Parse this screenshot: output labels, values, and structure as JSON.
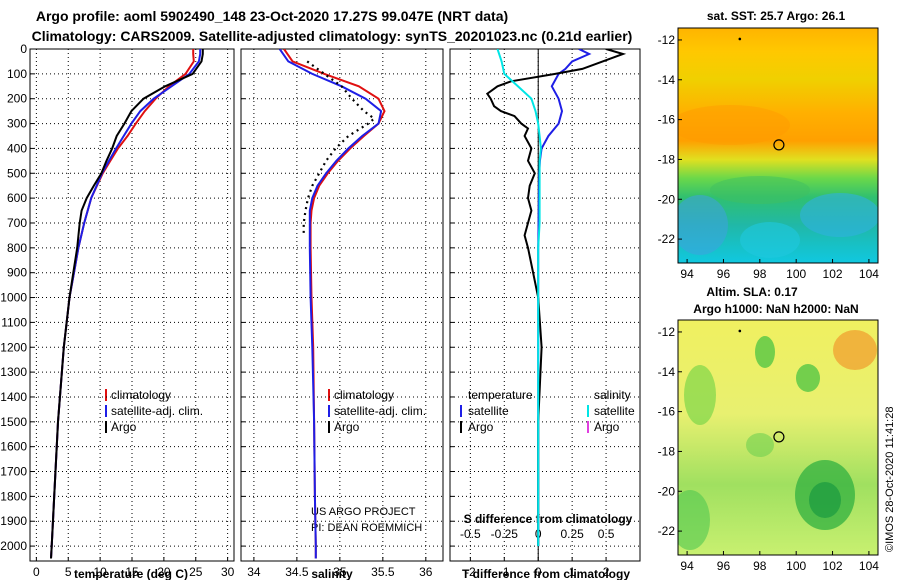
{
  "figure": {
    "title_line1": "Argo profile: aoml 5902490_148 23-Oct-2020 17.27S 99.047E (NRT data)",
    "title_line2": "Climatology: CARS2009. Satellite-adjusted climatology: synTS_20201023.nc (0.21d earlier)",
    "credit_line1": "US ARGO PROJECT",
    "credit_line2": "PI: DEAN ROEMMICH",
    "side_stamp": "©IMOS 28-Oct-2020 11:41:28",
    "colors": {
      "climatology": "#e01010",
      "satellite": "#1e1ee6",
      "argo": "#000000",
      "sal_satellite": "#00e5e5",
      "sal_argo": "#e040e0"
    }
  },
  "chart_data": [
    {
      "type": "line",
      "name": "temperature profile",
      "xlabel": "temperature (deg C)",
      "ylabel": "",
      "xlim": [
        -1,
        31
      ],
      "ylim": [
        2060,
        0
      ],
      "xticks": [
        "0",
        "5",
        "10",
        "15",
        "20",
        "25",
        "30"
      ],
      "yticks": [
        "0",
        "100",
        "200",
        "300",
        "400",
        "500",
        "600",
        "700",
        "800",
        "900",
        "1000",
        "1100",
        "1200",
        "1300",
        "1400",
        "1500",
        "1600",
        "1700",
        "1800",
        "1900",
        "2000"
      ],
      "legend": [
        "climatology",
        "satellite-adj. clim.",
        "Argo"
      ],
      "series": [
        {
          "name": "climatology",
          "depth": [
            0,
            20,
            50,
            100,
            150,
            200,
            250,
            300,
            350,
            400,
            450,
            500,
            600,
            700,
            800,
            900,
            1000,
            1200,
            1500,
            1800,
            2000,
            2050
          ],
          "values": [
            24.6,
            24.6,
            24.7,
            23.4,
            20.8,
            18.7,
            17.0,
            15.6,
            14.3,
            12.8,
            11.6,
            10.4,
            8.6,
            7.5,
            6.6,
            5.9,
            5.2,
            4.3,
            3.4,
            2.8,
            2.4,
            2.3
          ]
        },
        {
          "name": "satellite-adj. clim.",
          "depth": [
            0,
            20,
            50,
            100,
            150,
            200,
            250,
            300,
            350,
            400,
            450,
            500,
            600,
            700,
            800,
            900,
            1000,
            1200,
            1500,
            1800,
            2000,
            2050
          ],
          "values": [
            25.7,
            25.7,
            25.5,
            24.0,
            21.2,
            18.4,
            16.3,
            14.9,
            13.7,
            12.5,
            11.4,
            10.3,
            8.6,
            7.5,
            6.6,
            5.9,
            5.2,
            4.3,
            3.4,
            2.8,
            2.4,
            2.3
          ]
        },
        {
          "name": "Argo",
          "depth": [
            0,
            20,
            50,
            100,
            150,
            200,
            250,
            300,
            350,
            400,
            450,
            500,
            550,
            600,
            650,
            700,
            800,
            900,
            1000,
            1200,
            1500,
            1800,
            2000,
            2050
          ],
          "values": [
            26.1,
            26.1,
            25.9,
            24.5,
            20.2,
            16.8,
            14.9,
            13.8,
            12.6,
            11.9,
            11.0,
            10.2,
            9.0,
            7.9,
            7.1,
            6.8,
            6.4,
            5.8,
            5.2,
            4.3,
            3.4,
            2.8,
            2.4,
            2.3
          ]
        }
      ]
    },
    {
      "type": "line",
      "name": "salinity profile",
      "xlabel": "salinity",
      "xlim": [
        33.85,
        36.2
      ],
      "ylim": [
        2060,
        0
      ],
      "xticks": [
        "34",
        "34.5",
        "35",
        "35.5",
        "36"
      ],
      "legend": [
        "climatology",
        "satellite-adj. clim.",
        "Argo"
      ],
      "series": [
        {
          "name": "climatology",
          "depth": [
            0,
            50,
            100,
            150,
            200,
            250,
            300,
            350,
            400,
            450,
            500,
            550,
            600,
            650,
            700,
            800,
            1000,
            1200,
            1500,
            1800,
            2000,
            2050
          ],
          "values": [
            34.35,
            34.45,
            34.82,
            35.22,
            35.45,
            35.52,
            35.45,
            35.28,
            35.12,
            34.98,
            34.86,
            34.76,
            34.7,
            34.67,
            34.66,
            34.66,
            34.67,
            34.69,
            34.7,
            34.71,
            34.72,
            34.72
          ]
        },
        {
          "name": "satellite-adj. clim.",
          "depth": [
            0,
            50,
            100,
            150,
            200,
            250,
            300,
            350,
            400,
            450,
            500,
            550,
            600,
            650,
            700,
            800,
            1000,
            1200,
            1500,
            1800,
            2000,
            2050
          ],
          "values": [
            34.3,
            34.4,
            34.68,
            35.02,
            35.3,
            35.48,
            35.45,
            35.26,
            35.1,
            34.96,
            34.84,
            34.74,
            34.68,
            34.65,
            34.65,
            34.65,
            34.66,
            34.68,
            34.7,
            34.71,
            34.72,
            34.72
          ]
        },
        {
          "name": "Argo",
          "depth": [
            50,
            100,
            150,
            200,
            250,
            280,
            300,
            350,
            400,
            450,
            500,
            550,
            600,
            650,
            700,
            750
          ],
          "values": [
            34.62,
            34.82,
            35.02,
            35.14,
            35.28,
            35.4,
            35.33,
            35.1,
            34.95,
            34.84,
            34.76,
            34.68,
            34.63,
            34.6,
            34.58,
            34.58
          ]
        }
      ]
    },
    {
      "type": "line",
      "name": "difference from climatology",
      "xlabel": "T difference from climatology",
      "top_axis_label": "S difference from climatology",
      "xlim": [
        -2.6,
        3.0
      ],
      "ylim": [
        2060,
        0
      ],
      "xticks": [
        "-2",
        "-1",
        "0",
        "1",
        "2"
      ],
      "top_xticks": [
        "-0.5",
        "-0.25",
        "0",
        "0.25",
        "0.5"
      ],
      "legend_left_title": "temperature",
      "legend_right_title": "salinity",
      "legend": [
        "satellite",
        "Argo",
        "satellite",
        "Argo"
      ],
      "series": [
        {
          "name": "T satellite",
          "depth": [
            0,
            20,
            50,
            80,
            100,
            150,
            200,
            250,
            300,
            350,
            400,
            450,
            500,
            600,
            700,
            800,
            1000,
            1200,
            1500,
            1800,
            2000
          ],
          "values": [
            1.2,
            1.5,
            1.0,
            0.8,
            0.6,
            0.4,
            0.6,
            0.7,
            0.6,
            0.3,
            0.1,
            0.05,
            0.03,
            0.02,
            0.01,
            0.0,
            0.0,
            0.0,
            0.0,
            0.0,
            0.0
          ]
        },
        {
          "name": "T Argo",
          "depth": [
            0,
            20,
            50,
            80,
            100,
            130,
            150,
            180,
            200,
            230,
            250,
            270,
            300,
            320,
            350,
            400,
            450,
            500,
            550,
            600,
            650,
            700,
            750,
            800,
            1000,
            1200,
            1500,
            1800,
            2000
          ],
          "values": [
            2.0,
            2.5,
            1.9,
            1.3,
            0.5,
            -0.8,
            -1.2,
            -1.5,
            -1.4,
            -1.3,
            -1.1,
            -0.7,
            -0.5,
            -0.3,
            -0.4,
            -0.2,
            -0.3,
            -0.1,
            -0.25,
            -0.3,
            -0.2,
            -0.3,
            -0.4,
            -0.3,
            0.0,
            0.1,
            0.0,
            0.0,
            0.0
          ]
        },
        {
          "name": "S satellite",
          "depth": [
            0,
            50,
            100,
            150,
            200,
            250,
            300,
            350,
            400,
            450,
            500,
            600,
            700,
            800,
            1000,
            1200,
            1500,
            1800,
            2000
          ],
          "values": [
            -0.3,
            -0.27,
            -0.25,
            -0.15,
            -0.05,
            -0.02,
            0.0,
            0.01,
            0.02,
            0.01,
            0.01,
            0.01,
            0.01,
            0.0,
            0.0,
            0.0,
            0.0,
            0.0,
            0.0
          ]
        }
      ]
    },
    {
      "type": "heatmap",
      "name": "satellite SST map",
      "title": "sat. SST: 25.7 Argo: 26.1",
      "xticks": [
        "94",
        "96",
        "98",
        "100",
        "102",
        "104"
      ],
      "yticks": [
        "-12",
        "-14",
        "-16",
        "-18",
        "-20",
        "-22"
      ],
      "xlim": [
        93.5,
        104.5
      ],
      "ylim": [
        -23.2,
        -11.4
      ],
      "marker": {
        "lon": 99.05,
        "lat": -17.27
      }
    },
    {
      "type": "heatmap",
      "name": "altimetry SLA map",
      "title": "Altim. SLA: 0.17",
      "subtitle": "Argo h1000: NaN h2000: NaN",
      "xticks": [
        "94",
        "96",
        "98",
        "100",
        "102",
        "104"
      ],
      "yticks": [
        "-12",
        "-14",
        "-16",
        "-18",
        "-20",
        "-22"
      ],
      "xlim": [
        93.5,
        104.5
      ],
      "ylim": [
        -23.2,
        -11.4
      ],
      "marker": {
        "lon": 99.05,
        "lat": -17.27
      }
    }
  ]
}
